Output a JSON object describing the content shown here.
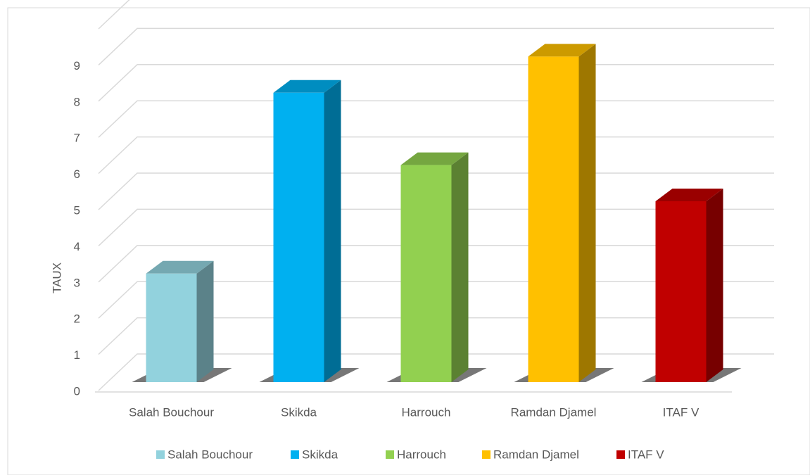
{
  "chart_data": {
    "type": "bar3d",
    "y_axis_label": "TAUX",
    "categories": [
      "Salah Bouchour",
      "Skikda",
      "Harrouch",
      "Ramdan Djamel",
      "ITAF V"
    ],
    "values": [
      3,
      8,
      6,
      9,
      5
    ],
    "colors": [
      "#92d2dd",
      "#00b0f0",
      "#92d050",
      "#ffc000",
      "#c00000"
    ],
    "ylim": [
      0,
      10
    ],
    "yticks": [
      0,
      1,
      2,
      3,
      4,
      5,
      6,
      7,
      8,
      9
    ],
    "grid": true,
    "legend": "bottom"
  }
}
